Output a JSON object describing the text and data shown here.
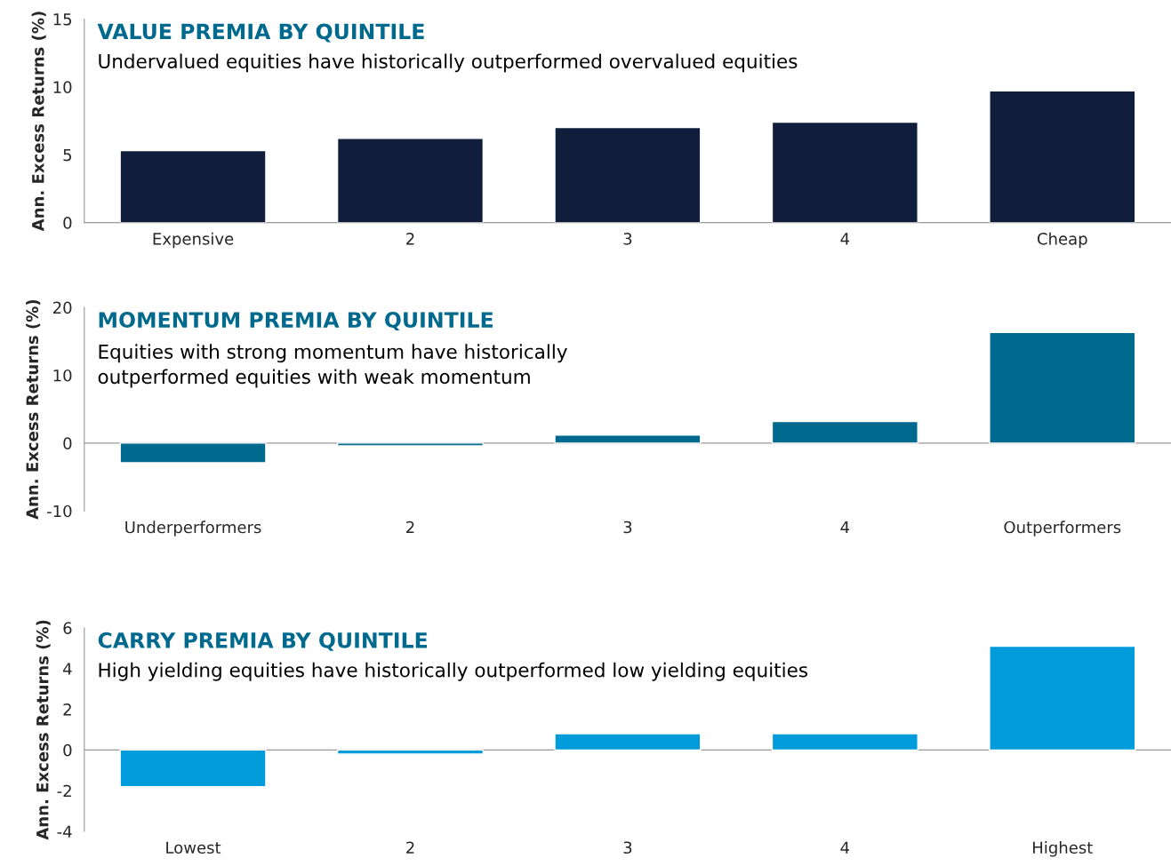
{
  "chart_data": [
    {
      "type": "bar",
      "title": "VALUE PREMIA BY QUINTILE",
      "subtitle": "Undervalued equities have historically outperformed overvalued equities",
      "ylabel": "Ann. Excess Returns (%)",
      "categories": [
        "Expensive",
        "2",
        "3",
        "4",
        "Cheap"
      ],
      "values": [
        5.3,
        6.2,
        7.0,
        7.4,
        9.7
      ],
      "color": "#101e3c",
      "ylim": [
        0,
        15
      ],
      "yticks": [
        0,
        5,
        10,
        15
      ],
      "grid": false,
      "legend": false
    },
    {
      "type": "bar",
      "title": "MOMENTUM PREMIA BY QUINTILE",
      "subtitle": "Equities with strong momentum have historically\noutperformed equities with weak momentum",
      "ylabel": "Ann. Excess Returns (%)",
      "categories": [
        "Underperformers",
        "2",
        "3",
        "4",
        "Outperformers"
      ],
      "values": [
        -2.9,
        -0.4,
        1.2,
        3.2,
        16.3
      ],
      "color": "#006a8e",
      "ylim": [
        -10,
        20
      ],
      "yticks": [
        -10,
        0,
        10,
        20
      ],
      "grid": false,
      "ref_lines": [
        {
          "axis": "y",
          "value": 0,
          "color": "#999999"
        }
      ],
      "legend": false
    },
    {
      "type": "bar",
      "title": "CARRY PREMIA BY QUINTILE",
      "subtitle": "High yielding equities have historically outperformed low yielding equities",
      "ylabel": "Ann. Excess Returns (%)",
      "categories": [
        "Lowest",
        "2",
        "3",
        "4",
        "Highest"
      ],
      "values": [
        -1.8,
        -0.2,
        0.8,
        0.8,
        5.1
      ],
      "color": "#009bdb",
      "ylim": [
        -4,
        6
      ],
      "yticks": [
        -4,
        -2,
        0,
        2,
        4,
        6
      ],
      "grid": false,
      "ref_lines": [
        {
          "axis": "y",
          "value": 0,
          "color": "#999999"
        }
      ],
      "legend": false
    }
  ]
}
